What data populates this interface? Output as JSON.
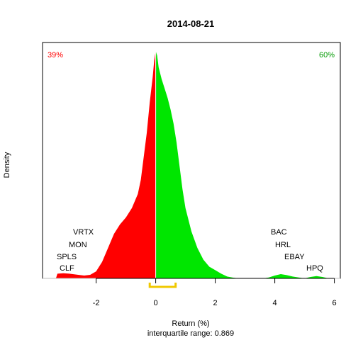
{
  "chart_data": {
    "type": "area",
    "title": "2014-08-21",
    "xlabel": "Return (%)",
    "ylabel": "Density",
    "subtitle": "interquartile range: 0.869",
    "xlim": [
      -3.8,
      6.2
    ],
    "ylim": [
      0,
      1.0
    ],
    "x_ticks": [
      -2,
      0,
      2,
      4,
      6
    ],
    "x_tick_labels": [
      "-2",
      "0",
      "2",
      "4",
      "6"
    ],
    "negative_share_label": "39%",
    "positive_share_label": "60%",
    "colors": {
      "negative": "#ff0000",
      "positive": "#00e600",
      "iqr": "#f0c800",
      "neg_label": "#ff0000",
      "pos_label": "#009900"
    },
    "iqr": [
      -0.2,
      0.669
    ],
    "density": {
      "x": [
        -3.35,
        -3.3,
        -3.1,
        -2.9,
        -2.6,
        -2.4,
        -2.2,
        -2.0,
        -1.8,
        -1.6,
        -1.4,
        -1.2,
        -1.0,
        -0.8,
        -0.6,
        -0.5,
        -0.4,
        -0.3,
        -0.2,
        -0.1,
        -0.05,
        0.0,
        0.05,
        0.1,
        0.2,
        0.3,
        0.4,
        0.5,
        0.6,
        0.7,
        0.8,
        0.9,
        1.0,
        1.2,
        1.4,
        1.6,
        1.8,
        2.0,
        2.2,
        2.4,
        2.6,
        2.8,
        3.0,
        3.2,
        3.4,
        3.6,
        3.8,
        4.0,
        4.2,
        4.4,
        4.6,
        4.8,
        5.0,
        5.2,
        5.4,
        5.6,
        5.8
      ],
      "y": [
        0.0,
        0.02,
        0.022,
        0.02,
        0.015,
        0.012,
        0.015,
        0.03,
        0.07,
        0.13,
        0.19,
        0.23,
        0.26,
        0.3,
        0.36,
        0.42,
        0.52,
        0.62,
        0.75,
        0.86,
        0.93,
        0.97,
        0.95,
        0.9,
        0.85,
        0.81,
        0.77,
        0.72,
        0.66,
        0.58,
        0.48,
        0.38,
        0.3,
        0.2,
        0.13,
        0.08,
        0.05,
        0.035,
        0.02,
        0.008,
        0.003,
        0.0,
        0.0,
        0.0,
        0.0,
        0.0,
        0.004,
        0.012,
        0.018,
        0.014,
        0.008,
        0.004,
        0.0,
        0.006,
        0.01,
        0.006,
        0.0
      ]
    },
    "annotations_left": [
      "VRTX",
      "MON",
      "SPLS",
      "CLF"
    ],
    "annotations_right": [
      "BAC",
      "HRL",
      "EBAY",
      "HPQ"
    ]
  }
}
